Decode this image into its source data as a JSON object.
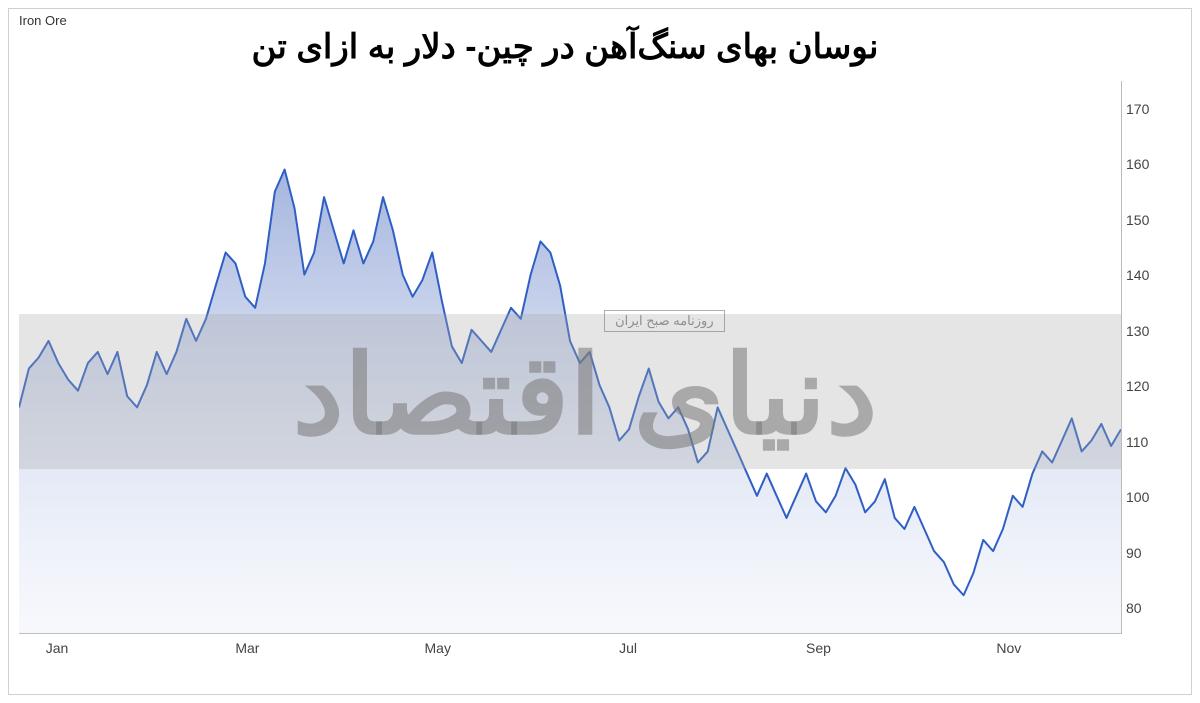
{
  "top_label": "Iron Ore",
  "title": "نوسان بهای سنگ‌آهن در چین- دلار به ازای تن",
  "chart": {
    "type": "area",
    "y_axis": {
      "min": 75,
      "max": 175,
      "ticks": [
        80,
        90,
        100,
        110,
        120,
        130,
        140,
        150,
        160,
        170
      ],
      "tick_fontsize": 14,
      "tick_color": "#444444"
    },
    "x_axis": {
      "ticks": [
        "Jan",
        "Mar",
        "May",
        "Jul",
        "Sep",
        "Nov"
      ],
      "tick_fontsize": 14,
      "tick_color": "#444444"
    },
    "line_color": "#2f5fc4",
    "line_width": 2,
    "fill_top_color": "#5a78c2",
    "fill_top_opacity": 0.55,
    "fill_bottom_color": "#c9d4ee",
    "fill_bottom_opacity": 0.15,
    "background_color": "#ffffff",
    "series": [
      116,
      123,
      125,
      128,
      124,
      121,
      119,
      124,
      126,
      122,
      126,
      118,
      116,
      120,
      126,
      122,
      126,
      132,
      128,
      132,
      138,
      144,
      142,
      136,
      134,
      142,
      155,
      159,
      152,
      140,
      144,
      154,
      148,
      142,
      148,
      142,
      146,
      154,
      148,
      140,
      136,
      139,
      144,
      135,
      127,
      124,
      130,
      128,
      126,
      130,
      134,
      132,
      140,
      146,
      144,
      138,
      128,
      124,
      126,
      120,
      116,
      110,
      112,
      118,
      123,
      117,
      114,
      116,
      112,
      106,
      108,
      116,
      112,
      108,
      104,
      100,
      104,
      100,
      96,
      100,
      104,
      99,
      97,
      100,
      105,
      102,
      97,
      99,
      103,
      96,
      94,
      98,
      94,
      90,
      88,
      84,
      82,
      86,
      92,
      90,
      94,
      100,
      98,
      104,
      108,
      106,
      110,
      114,
      108,
      110,
      113,
      109,
      112
    ]
  },
  "watermark": {
    "main_text": "دنیای اقتصاد",
    "sub_text": "روزنامه صبح ایران",
    "band_y_from": 105,
    "band_y_to": 133,
    "main_fontsize": 110,
    "text_color": "rgba(120,120,120,0.55)",
    "band_color": "rgba(170,170,170,0.3)"
  }
}
